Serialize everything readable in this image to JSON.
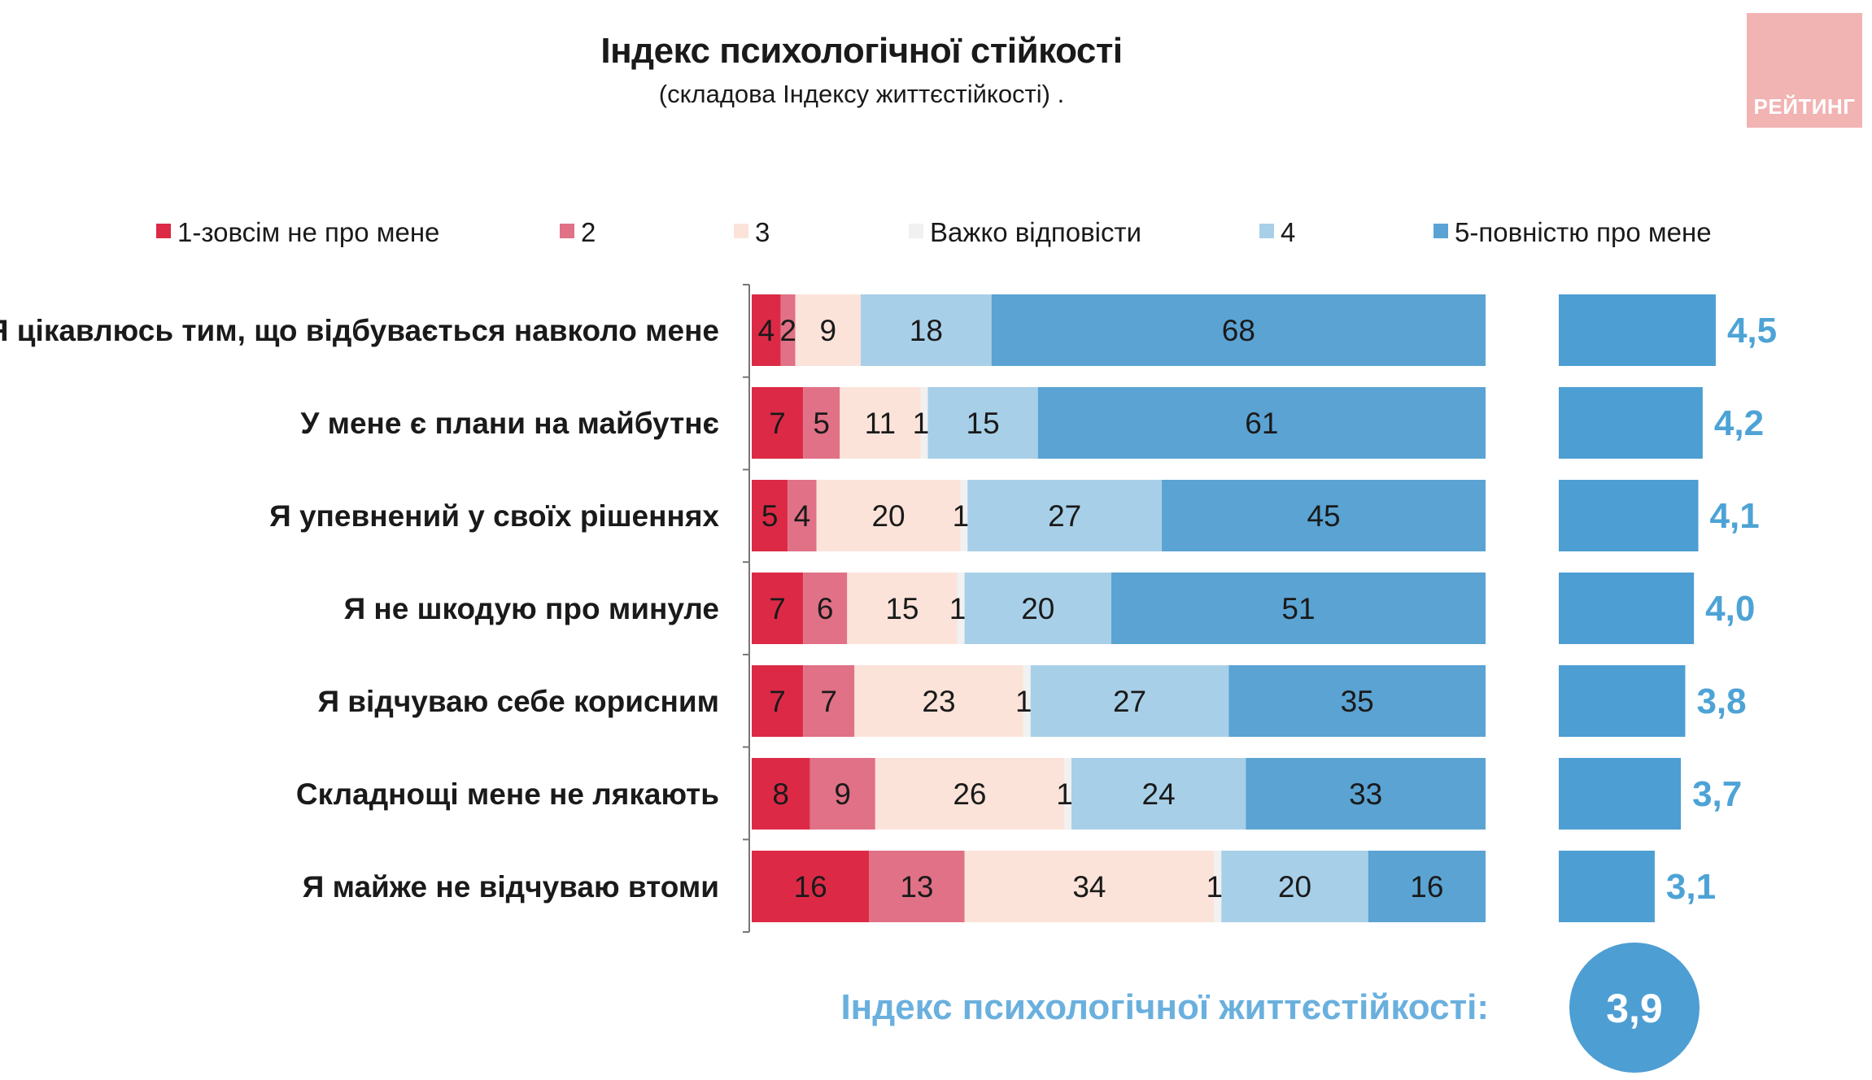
{
  "title": "Індекс психологічної стійкості",
  "subtitle": "(складова Індексу життєстійкості) .",
  "logo_text": "РЕЙТИНГ",
  "chart_data": {
    "type": "bar",
    "stacked": true,
    "orientation": "horizontal",
    "title": "Індекс психологічної стійкості",
    "legend_position": "top",
    "categories": [
      "Я цікавлюсь тим, що відбувається навколо мене",
      "У мене є плани на майбутнє",
      "Я упевнений у своїх рішеннях",
      "Я не шкодую про минуле",
      "Я відчуваю себе корисним",
      "Складнощі мене не лякають",
      "Я майже не відчуваю втоми"
    ],
    "series": [
      {
        "name": "1-зовсім не про мене",
        "color": "#dc2a46",
        "values": [
          4,
          7,
          5,
          7,
          7,
          8,
          16
        ]
      },
      {
        "name": "2",
        "color": "#e07186",
        "values": [
          2,
          5,
          4,
          6,
          7,
          9,
          13
        ]
      },
      {
        "name": "3",
        "color": "#fbe3d9",
        "values": [
          9,
          11,
          20,
          15,
          23,
          26,
          34
        ]
      },
      {
        "name": "Важко відповісти",
        "color": "#f1f1f1",
        "values": [
          0,
          1,
          1,
          1,
          1,
          1,
          1
        ]
      },
      {
        "name": "4",
        "color": "#a8cfe8",
        "values": [
          18,
          15,
          27,
          20,
          27,
          24,
          20
        ]
      },
      {
        "name": "5-повністю про мене",
        "color": "#5aa3d3",
        "values": [
          68,
          61,
          45,
          51,
          35,
          33,
          16
        ]
      }
    ],
    "scores": {
      "color": "#4d9ed3",
      "labels": [
        "4,5",
        "4,2",
        "4,1",
        "4,0",
        "3,8",
        "3,7",
        "3,1"
      ],
      "values": [
        4.5,
        4.2,
        4.1,
        4.0,
        3.8,
        3.7,
        3.1
      ]
    },
    "index": {
      "label": "Індекс психологічної життєстійкості:",
      "value": "3,9"
    }
  }
}
